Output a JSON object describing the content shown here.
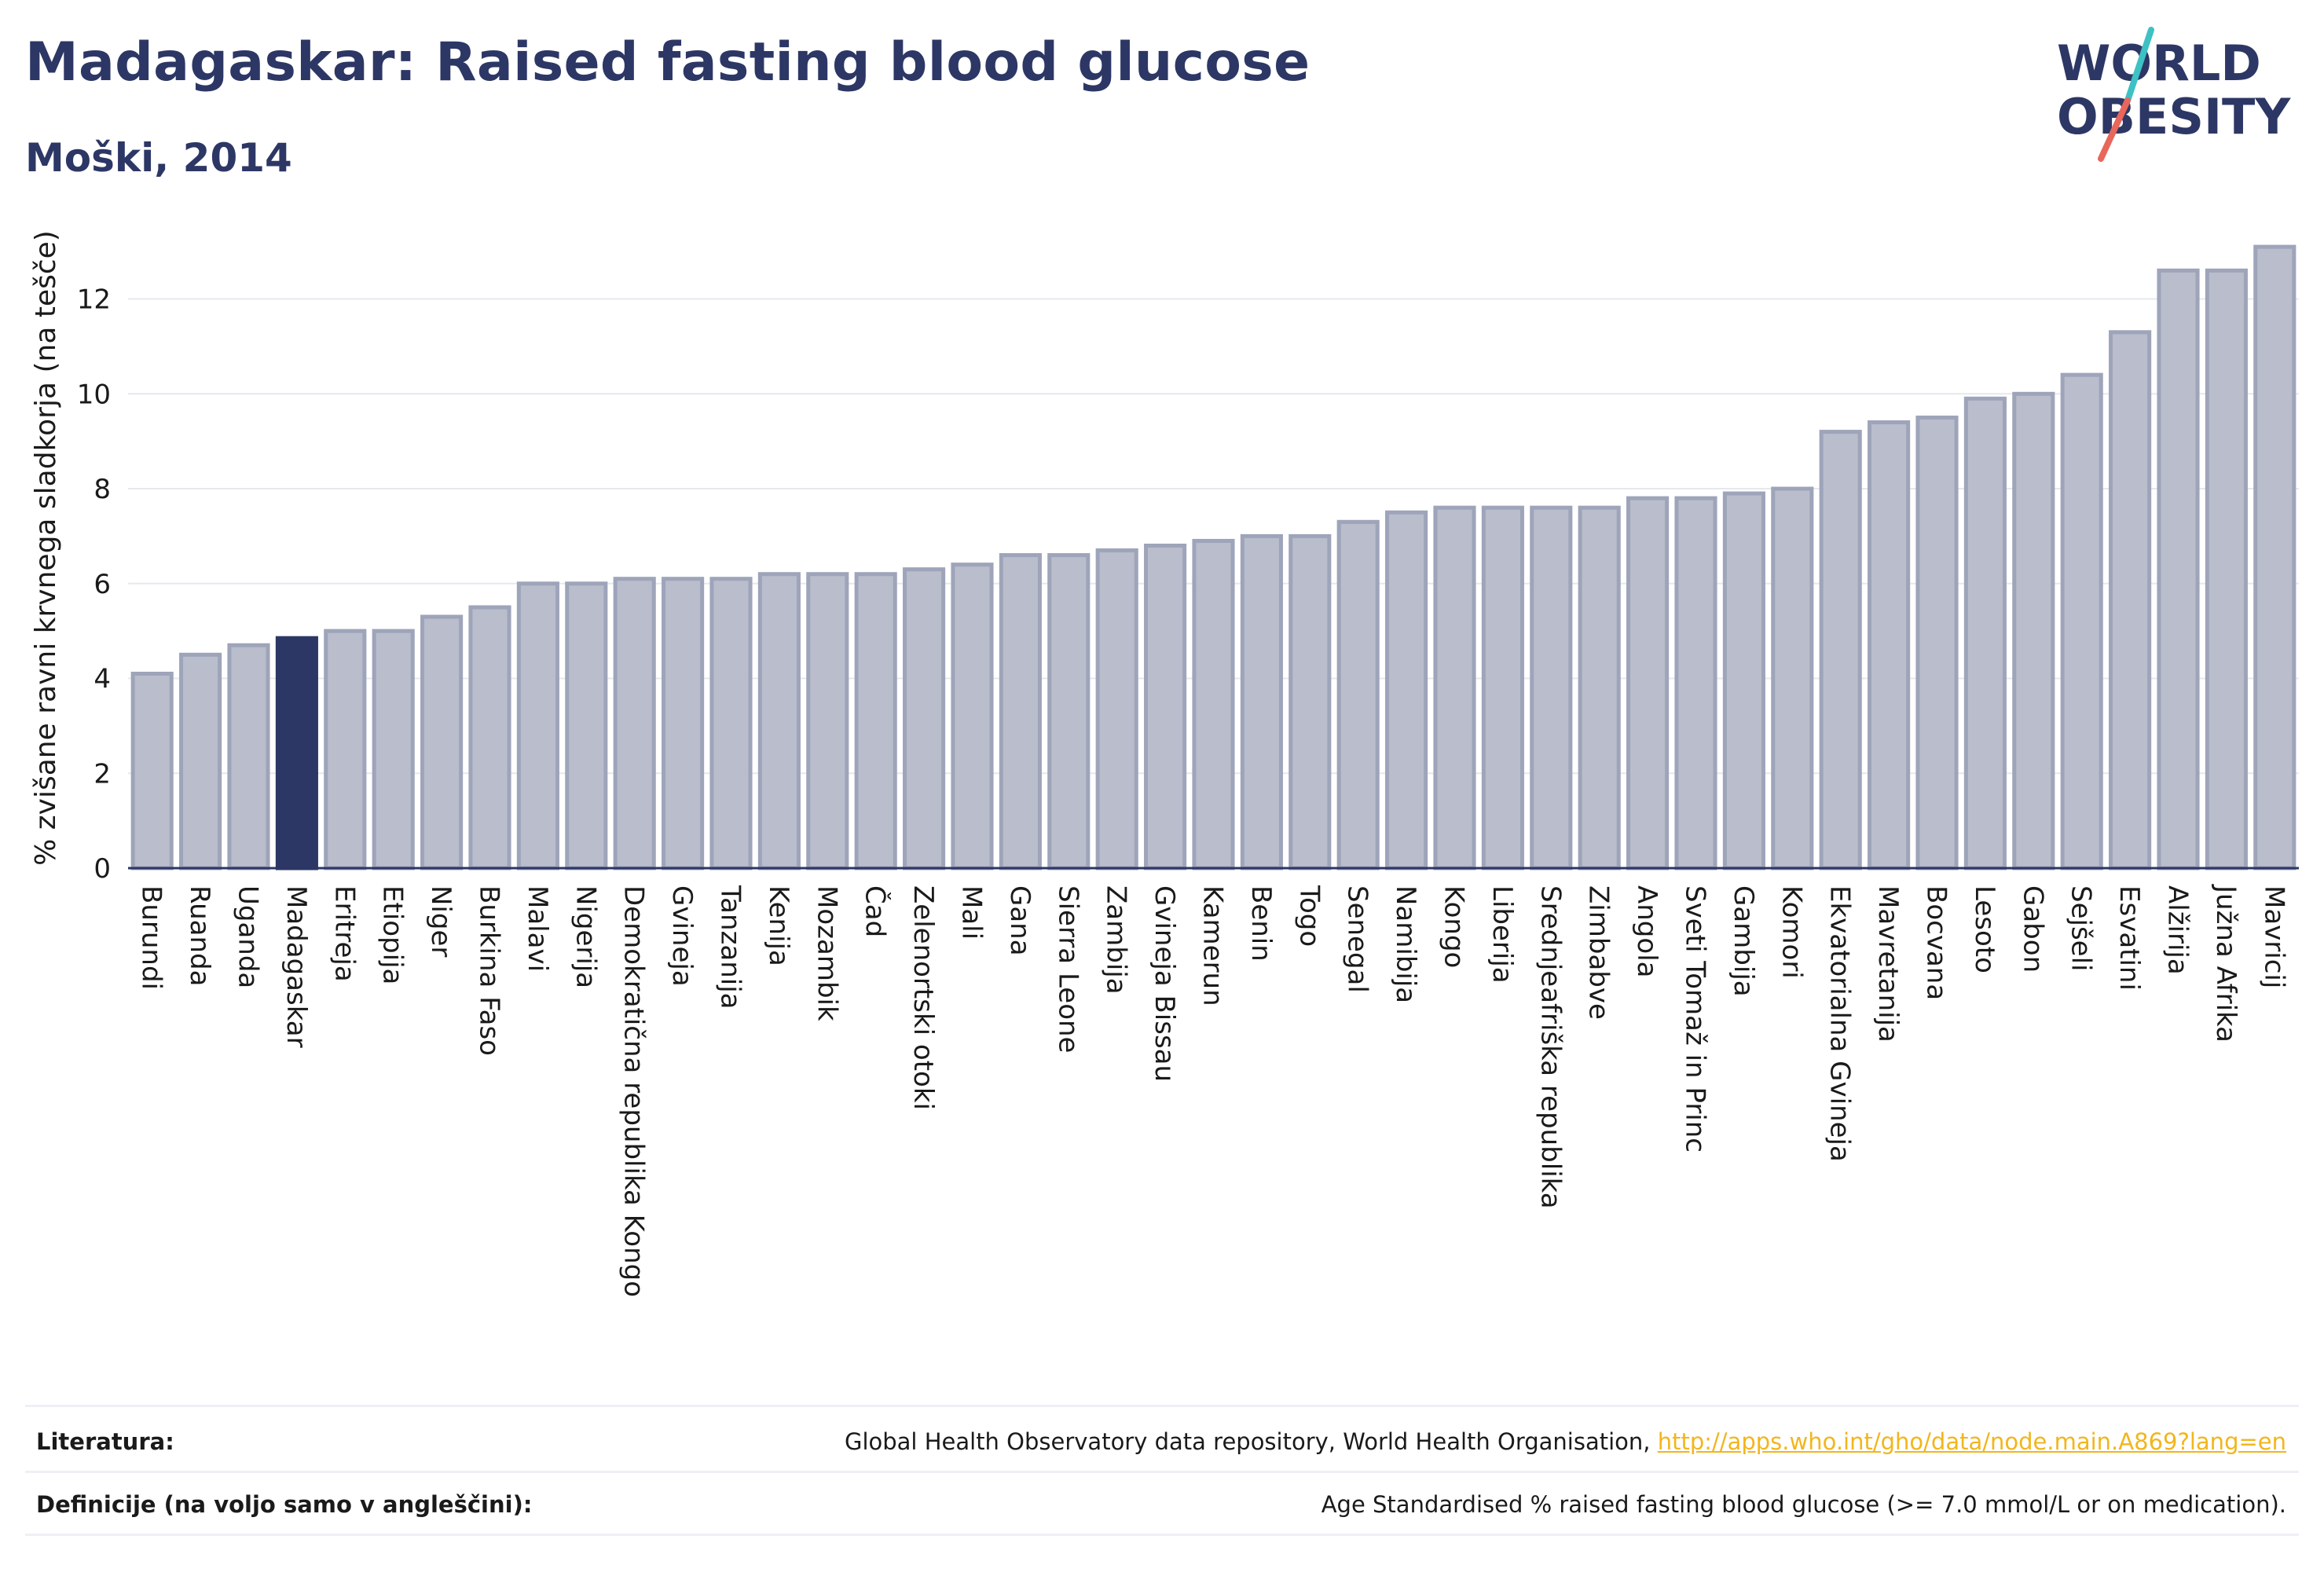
{
  "header": {
    "title": "Madagaskar: Raised fasting blood glucose",
    "subtitle": "Moški, 2014"
  },
  "logo": {
    "line1": "WORLD",
    "line2": "OBESITY",
    "text_color": "#2d3765",
    "slash_colors": [
      "#3ec1c4",
      "#e8665b"
    ]
  },
  "colors": {
    "bar_fill": "#b9bdcc",
    "bar_stroke": "#9ea4b9",
    "highlight_fill": "#2d3765",
    "axis": "#2d3765",
    "grid": "#e6e8ee",
    "text": "#1a1a1a"
  },
  "chart_data": {
    "type": "bar",
    "ylabel": "% zvišane ravni krvnega sladkorja (na tešče)",
    "xlabel": "",
    "ylim": [
      0,
      13.5
    ],
    "yticks": [
      0,
      2,
      4,
      6,
      8,
      10,
      12
    ],
    "grid": true,
    "highlight": "Madagaskar",
    "categories": [
      "Burundi",
      "Ruanda",
      "Uganda",
      "Madagaskar",
      "Eritreja",
      "Etiopija",
      "Niger",
      "Burkina Faso",
      "Malavi",
      "Nigerija",
      "Demokratična republika Kongo",
      "Gvineja",
      "Tanzanija",
      "Kenija",
      "Mozambik",
      "Čad",
      "Zelenortski otoki",
      "Mali",
      "Gana",
      "Sierra Leone",
      "Zambija",
      "Gvineja Bissau",
      "Kamerun",
      "Benin",
      "Togo",
      "Senegal",
      "Namibija",
      "Kongo",
      "Liberija",
      "Srednjeafriška republika",
      "Zimbabve",
      "Angola",
      "Sveti Tomaž in Princ",
      "Gambija",
      "Komori",
      "Ekvatorialna Gvineja",
      "Mavretanija",
      "Bocvana",
      "Lesoto",
      "Gabon",
      "Sejšeli",
      "Esvatini",
      "Alžirija",
      "Južna Afrika",
      "Mavricij"
    ],
    "values": [
      4.1,
      4.5,
      4.7,
      4.85,
      5.0,
      5.0,
      5.3,
      5.5,
      6.0,
      6.0,
      6.1,
      6.1,
      6.1,
      6.2,
      6.2,
      6.2,
      6.3,
      6.4,
      6.6,
      6.6,
      6.7,
      6.8,
      6.9,
      7.0,
      7.0,
      7.3,
      7.5,
      7.6,
      7.6,
      7.6,
      7.6,
      7.8,
      7.8,
      7.9,
      8.0,
      9.2,
      9.4,
      9.5,
      9.9,
      10.0,
      10.4,
      11.3,
      12.6,
      12.6,
      13.1
    ]
  },
  "footer": {
    "references_label": "Literatura:",
    "references_text": "Global Health Observatory data repository, World Health Organisation,",
    "references_link": "http://apps.who.int/gho/data/node.main.A869?lang=en",
    "definitions_label": "Definicije (na voljo samo v angleščini):",
    "definitions_text": "Age Standardised % raised fasting blood glucose (>= 7.0 mmol/L or on medication)."
  }
}
